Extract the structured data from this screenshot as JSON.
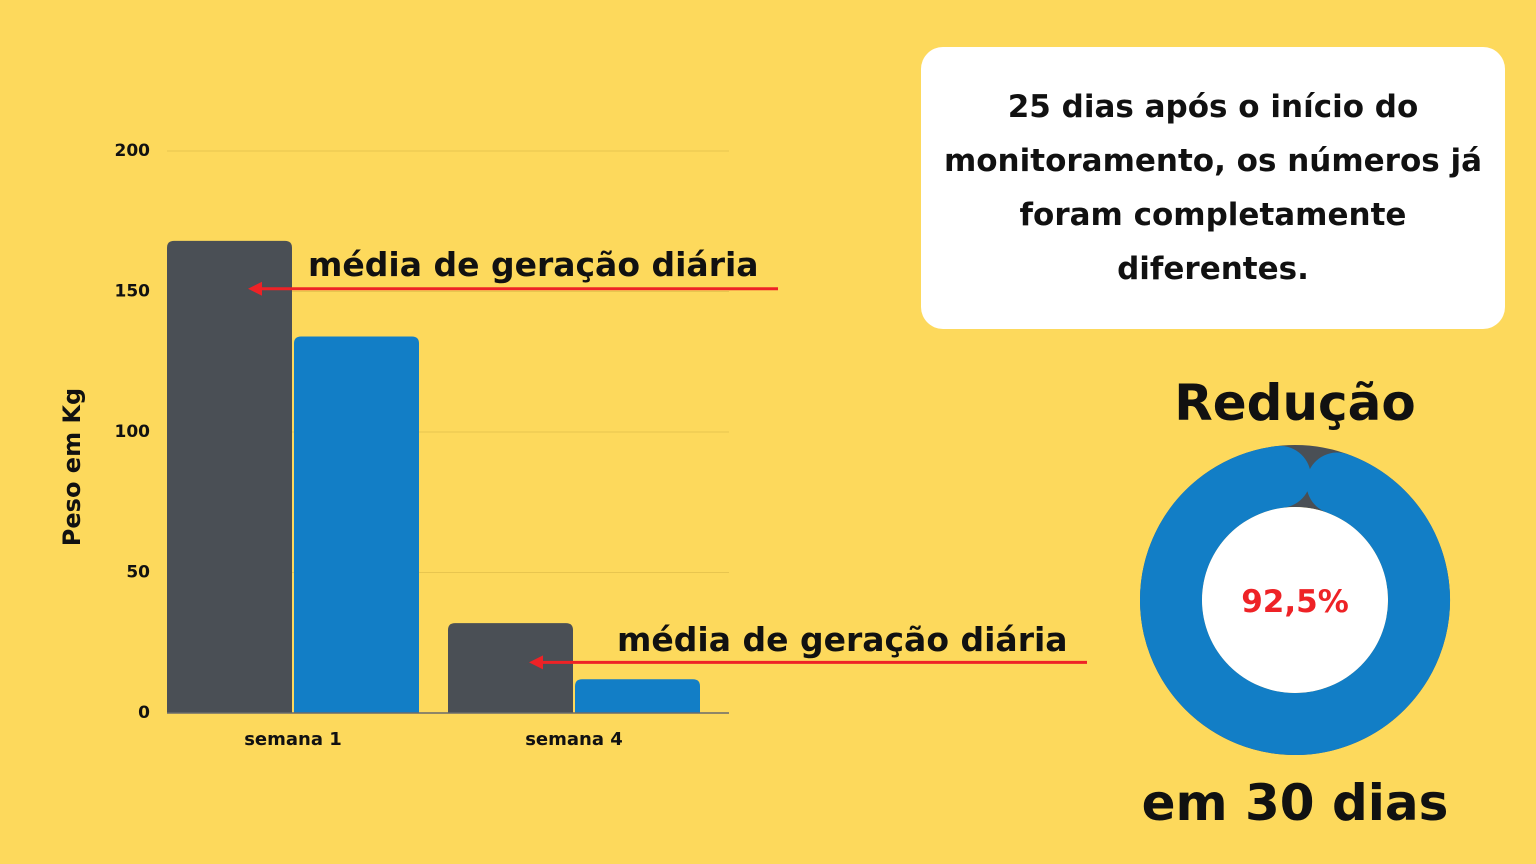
{
  "colors": {
    "background": "#fdd95c",
    "bar_series_a": "#4a4f55",
    "bar_series_b": "#127ec6",
    "grid": "#e8c54f",
    "axis": "#6b6b6b",
    "arrow": "#ee2226",
    "donut_filled": "#127ec6",
    "donut_remaining": "#4a4f55",
    "percent_text": "#ee2226"
  },
  "chart_data": [
    {
      "type": "bar",
      "title": "",
      "xlabel": "",
      "ylabel": "Peso em Kg",
      "ylim": [
        0,
        200
      ],
      "yticks": [
        0,
        50,
        100,
        150,
        200
      ],
      "categories": [
        "semana 1",
        "semana 4"
      ],
      "series": [
        {
          "values": [
            168,
            32
          ]
        },
        {
          "values": [
            134,
            12
          ]
        }
      ],
      "grid": true,
      "annotations": [
        {
          "text": "média de geração diária",
          "category": "semana 1",
          "points_to_value": 151
        },
        {
          "text": "média de geração diária",
          "category": "semana 4",
          "points_to_value": 18
        }
      ]
    },
    {
      "type": "pie",
      "variant": "donut",
      "title": "Redução",
      "subtitle": "em 30 dias",
      "center_label": "92,5%",
      "value_percent": 92.5
    }
  ],
  "info_box": {
    "text": "25 dias após o início do monitoramento, os números já foram completamente diferentes."
  }
}
